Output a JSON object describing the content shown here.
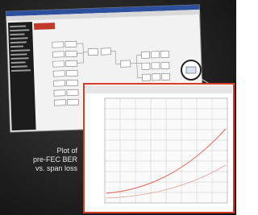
{
  "caption": {
    "lines": [
      "Plot of",
      "pre-FEC BER",
      "vs. span loss"
    ]
  }
}
